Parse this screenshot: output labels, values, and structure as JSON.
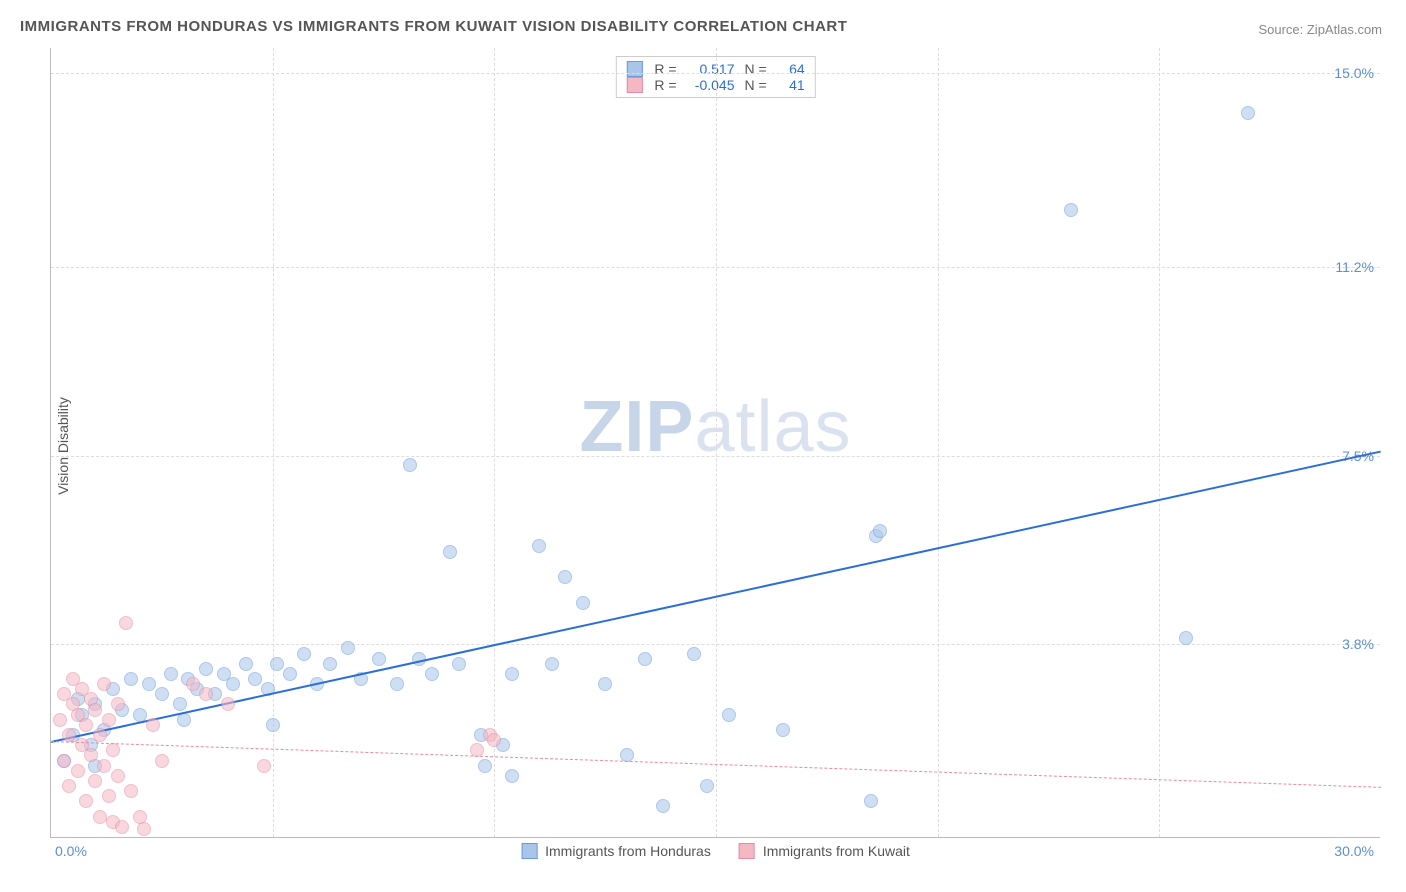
{
  "title": "IMMIGRANTS FROM HONDURAS VS IMMIGRANTS FROM KUWAIT VISION DISABILITY CORRELATION CHART",
  "source": "Source: ZipAtlas.com",
  "y_axis_label": "Vision Disability",
  "watermark": {
    "part1": "ZIP",
    "part2": "atlas"
  },
  "chart": {
    "type": "scatter",
    "xlim": [
      0,
      30
    ],
    "ylim": [
      0,
      15.5
    ],
    "x_tick_left": "0.0%",
    "x_tick_right": "30.0%",
    "y_ticks": [
      {
        "value": 3.8,
        "label": "3.8%"
      },
      {
        "value": 7.5,
        "label": "7.5%"
      },
      {
        "value": 11.2,
        "label": "11.2%"
      },
      {
        "value": 15.0,
        "label": "15.0%"
      }
    ],
    "x_gridlines": [
      5,
      10,
      15,
      20,
      25
    ],
    "background_color": "#ffffff",
    "grid_color": "#dddddd",
    "axis_color": "#bbbbbb",
    "point_radius": 7,
    "point_opacity": 0.55,
    "series": [
      {
        "name": "Immigrants from Honduras",
        "color_fill": "#a9c6ea",
        "color_stroke": "#6a9bd8",
        "r_value": "0.517",
        "n_value": "64",
        "trend": {
          "x1": 0,
          "y1": 1.9,
          "x2": 30,
          "y2": 7.6,
          "solid": true,
          "color": "#2b6fd6",
          "width": 2
        },
        "points": [
          [
            0.3,
            1.5
          ],
          [
            0.5,
            2.0
          ],
          [
            0.7,
            2.4
          ],
          [
            0.9,
            1.8
          ],
          [
            1.0,
            2.6
          ],
          [
            1.2,
            2.1
          ],
          [
            1.4,
            2.9
          ],
          [
            1.6,
            2.5
          ],
          [
            1.8,
            3.1
          ],
          [
            2.0,
            2.4
          ],
          [
            2.2,
            3.0
          ],
          [
            2.5,
            2.8
          ],
          [
            2.7,
            3.2
          ],
          [
            2.9,
            2.6
          ],
          [
            3.1,
            3.1
          ],
          [
            3.3,
            2.9
          ],
          [
            3.5,
            3.3
          ],
          [
            3.7,
            2.8
          ],
          [
            3.9,
            3.2
          ],
          [
            4.1,
            3.0
          ],
          [
            4.4,
            3.4
          ],
          [
            4.6,
            3.1
          ],
          [
            4.9,
            2.9
          ],
          [
            5.1,
            3.4
          ],
          [
            5.4,
            3.2
          ],
          [
            5.7,
            3.6
          ],
          [
            6.0,
            3.0
          ],
          [
            6.3,
            3.4
          ],
          [
            6.7,
            3.7
          ],
          [
            7.0,
            3.1
          ],
          [
            7.4,
            3.5
          ],
          [
            7.8,
            3.0
          ],
          [
            8.1,
            7.3
          ],
          [
            8.3,
            3.5
          ],
          [
            8.6,
            3.2
          ],
          [
            9.0,
            5.6
          ],
          [
            9.2,
            3.4
          ],
          [
            9.7,
            2.0
          ],
          [
            9.8,
            1.4
          ],
          [
            10.2,
            1.8
          ],
          [
            10.4,
            3.2
          ],
          [
            10.4,
            1.2
          ],
          [
            11.0,
            5.7
          ],
          [
            11.3,
            3.4
          ],
          [
            11.6,
            5.1
          ],
          [
            12.0,
            4.6
          ],
          [
            12.5,
            3.0
          ],
          [
            13.0,
            1.6
          ],
          [
            13.4,
            3.5
          ],
          [
            13.8,
            0.6
          ],
          [
            14.5,
            3.6
          ],
          [
            14.8,
            1.0
          ],
          [
            15.3,
            2.4
          ],
          [
            16.5,
            2.1
          ],
          [
            18.5,
            0.7
          ],
          [
            18.6,
            5.9
          ],
          [
            18.7,
            6.0
          ],
          [
            23.0,
            12.3
          ],
          [
            25.6,
            3.9
          ],
          [
            27.0,
            14.2
          ],
          [
            5.0,
            2.2
          ],
          [
            3.0,
            2.3
          ],
          [
            1.0,
            1.4
          ],
          [
            0.6,
            2.7
          ]
        ]
      },
      {
        "name": "Immigrants from Kuwait",
        "color_fill": "#f4b8c4",
        "color_stroke": "#e88aa0",
        "r_value": "-0.045",
        "n_value": "41",
        "trend": {
          "x1": 0,
          "y1": 1.9,
          "x2": 30,
          "y2": 1.0,
          "solid": false,
          "color": "#e88aa0",
          "width": 1.3
        },
        "points": [
          [
            0.2,
            2.3
          ],
          [
            0.3,
            1.5
          ],
          [
            0.3,
            2.8
          ],
          [
            0.4,
            1.0
          ],
          [
            0.4,
            2.0
          ],
          [
            0.5,
            2.6
          ],
          [
            0.5,
            3.1
          ],
          [
            0.6,
            1.3
          ],
          [
            0.6,
            2.4
          ],
          [
            0.7,
            1.8
          ],
          [
            0.7,
            2.9
          ],
          [
            0.8,
            0.7
          ],
          [
            0.8,
            2.2
          ],
          [
            0.9,
            1.6
          ],
          [
            0.9,
            2.7
          ],
          [
            1.0,
            1.1
          ],
          [
            1.0,
            2.5
          ],
          [
            1.1,
            0.4
          ],
          [
            1.1,
            2.0
          ],
          [
            1.2,
            1.4
          ],
          [
            1.2,
            3.0
          ],
          [
            1.3,
            0.8
          ],
          [
            1.3,
            2.3
          ],
          [
            1.4,
            1.7
          ],
          [
            1.4,
            0.3
          ],
          [
            1.5,
            2.6
          ],
          [
            1.5,
            1.2
          ],
          [
            1.6,
            0.2
          ],
          [
            1.7,
            4.2
          ],
          [
            1.8,
            0.9
          ],
          [
            2.0,
            0.4
          ],
          [
            2.1,
            0.15
          ],
          [
            2.3,
            2.2
          ],
          [
            2.5,
            1.5
          ],
          [
            3.5,
            2.8
          ],
          [
            4.0,
            2.6
          ],
          [
            4.8,
            1.4
          ],
          [
            9.6,
            1.7
          ],
          [
            9.9,
            2.0
          ],
          [
            10.0,
            1.9
          ],
          [
            3.2,
            3.0
          ]
        ]
      }
    ]
  },
  "stats_box": {
    "r_label": "R =",
    "n_label": "N ="
  },
  "bottom_legend": {
    "items_key": "chart.series"
  }
}
